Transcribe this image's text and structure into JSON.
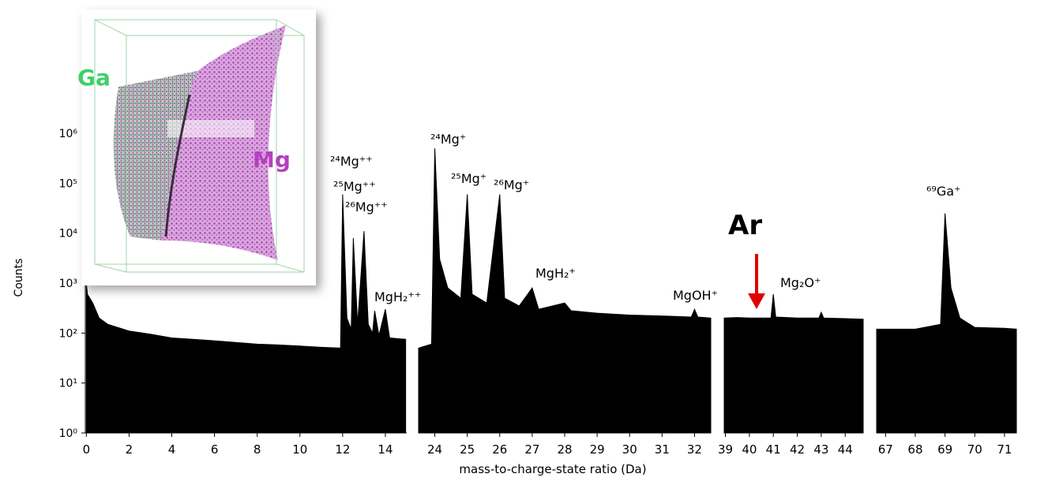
{
  "chart_data": {
    "type": "area",
    "x_label": "mass-to-charge-state ratio (Da)",
    "y_label": "Counts",
    "log_y": true,
    "color": "#000000",
    "ylim": [
      1,
      2000000
    ],
    "yticks": [
      {
        "value": 1,
        "label": "10⁰"
      },
      {
        "value": 10,
        "label": "10¹"
      },
      {
        "value": 100,
        "label": "10²"
      },
      {
        "value": 1000,
        "label": "10³"
      },
      {
        "value": 10000,
        "label": "10⁴"
      },
      {
        "value": 100000,
        "label": "10⁵"
      },
      {
        "value": 1000000,
        "label": "10⁶"
      }
    ],
    "panels": [
      {
        "xlim": [
          -0.05,
          15
        ],
        "xticks": [
          0,
          2,
          4,
          6,
          8,
          10,
          12,
          14
        ],
        "x": [
          0,
          0.05,
          0.3,
          0.6,
          1,
          2,
          3,
          4,
          5,
          6,
          7,
          8,
          9,
          10,
          11,
          11.9,
          12.0,
          12.2,
          12.4,
          12.5,
          12.7,
          13.0,
          13.2,
          13.4,
          13.5,
          13.7,
          14.0,
          14.2,
          14.95
        ],
        "values": [
          1000,
          600,
          400,
          200,
          150,
          110,
          95,
          80,
          75,
          70,
          65,
          60,
          58,
          55,
          52,
          50,
          60000,
          200,
          120,
          8000,
          150,
          11000,
          150,
          100,
          280,
          90,
          300,
          80,
          75
        ]
      },
      {
        "xlim": [
          23.5,
          32.5
        ],
        "xticks": [
          24,
          25,
          26,
          27,
          28,
          29,
          30,
          31,
          32
        ],
        "x": [
          23.5,
          23.9,
          24.0,
          24.15,
          24.4,
          24.8,
          25.0,
          25.15,
          25.6,
          26.0,
          26.15,
          26.6,
          27.0,
          27.2,
          28.0,
          28.2,
          29,
          30,
          31,
          31.9,
          32.0,
          32.1,
          32.5
        ],
        "values": [
          50,
          60,
          500000,
          3000,
          800,
          500,
          60000,
          600,
          400,
          60000,
          500,
          350,
          800,
          300,
          400,
          280,
          250,
          230,
          220,
          210,
          300,
          210,
          200
        ]
      },
      {
        "xlim": [
          38.95,
          44.75
        ],
        "xticks": [
          39,
          40,
          41,
          42,
          43,
          44
        ],
        "x": [
          38.95,
          39.5,
          40,
          40.5,
          40.9,
          41.0,
          41.1,
          42,
          42.9,
          43.0,
          43.1,
          44,
          44.75
        ],
        "values": [
          200,
          205,
          200,
          200,
          200,
          600,
          210,
          200,
          200,
          260,
          200,
          195,
          190
        ]
      },
      {
        "xlim": [
          66.7,
          71.4
        ],
        "xticks": [
          67,
          68,
          69,
          70,
          71
        ],
        "x": [
          66.7,
          67.5,
          68,
          68.85,
          69.0,
          69.2,
          69.5,
          70,
          71,
          71.4
        ],
        "values": [
          120,
          120,
          120,
          150,
          25000,
          800,
          200,
          130,
          125,
          120
        ]
      }
    ],
    "annotations": [
      "²⁴Mg⁺⁺",
      "²⁵Mg⁺⁺",
      "²⁶Mg⁺⁺",
      "MgH₂⁺⁺",
      "²⁴Mg⁺",
      "²⁵Mg⁺",
      "²⁶Mg⁺",
      "MgH₂⁺",
      "MgOH⁺",
      "Mg₂O⁺",
      "⁶⁹Ga⁺",
      "Ar"
    ]
  },
  "inset": {
    "labels": [
      "Ga",
      "Mg"
    ]
  }
}
